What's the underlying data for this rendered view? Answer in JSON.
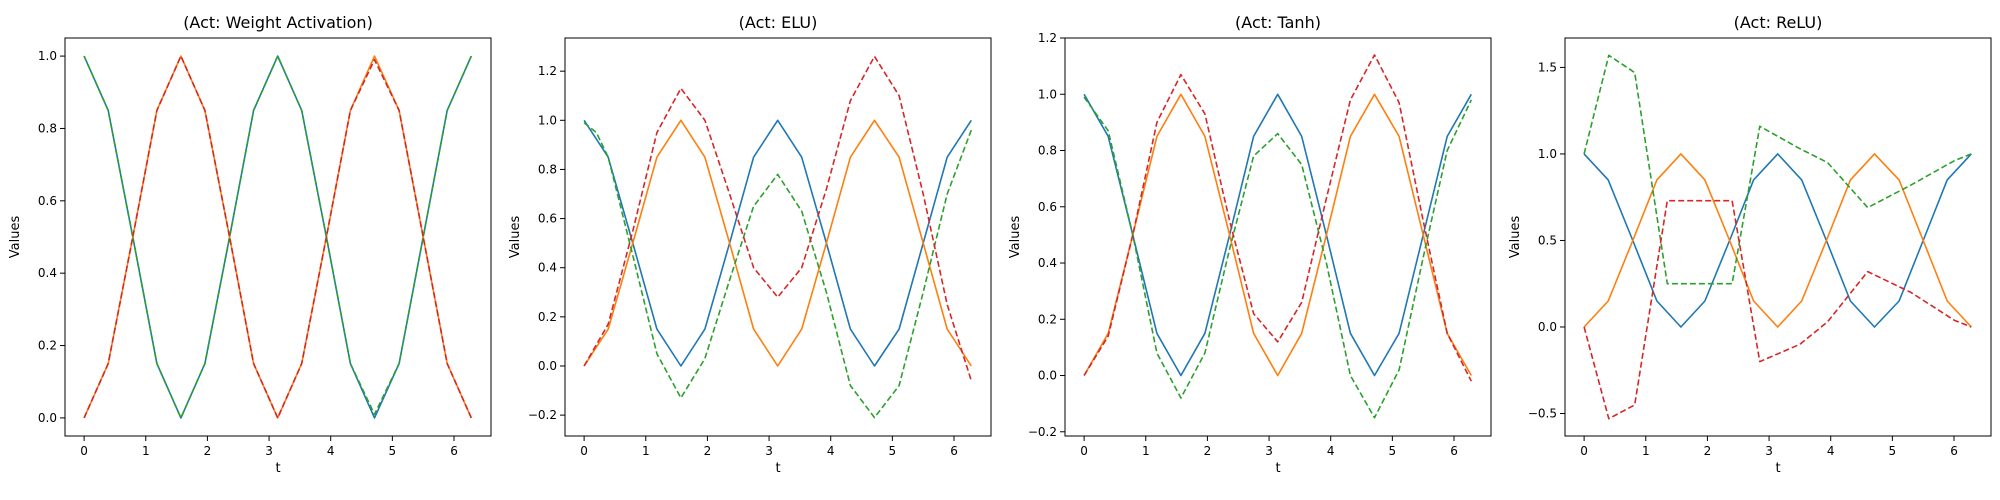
{
  "chart_data": [
    {
      "type": "line",
      "title": "(Act: Weight Activation)",
      "xlabel": "t",
      "ylabel": "Values",
      "xlim": [
        -0.31,
        6.6
      ],
      "ylim": [
        -0.05,
        1.05
      ],
      "xticks": [
        0,
        1,
        2,
        3,
        4,
        5,
        6
      ],
      "yticks": [
        0.0,
        0.2,
        0.4,
        0.6,
        0.8,
        1.0
      ],
      "ytick_labels": [
        "0.0",
        "0.2",
        "0.4",
        "0.6",
        "0.8",
        "1.0"
      ],
      "grid": false,
      "legend": "none",
      "series": [
        {
          "color": "#1f77b4",
          "style": "solid",
          "x": [
            0,
            0.39,
            0.79,
            1.18,
            1.57,
            1.96,
            2.36,
            2.75,
            3.14,
            3.53,
            3.93,
            4.32,
            4.71,
            5.11,
            5.5,
            5.89,
            6.28
          ],
          "y": [
            1.0,
            0.85,
            0.5,
            0.15,
            0.0,
            0.15,
            0.5,
            0.85,
            1.0,
            0.85,
            0.5,
            0.15,
            0.0,
            0.15,
            0.5,
            0.85,
            1.0
          ]
        },
        {
          "color": "#ff7f0e",
          "style": "solid",
          "x": [
            0,
            0.39,
            0.79,
            1.18,
            1.57,
            1.96,
            2.36,
            2.75,
            3.14,
            3.53,
            3.93,
            4.32,
            4.71,
            5.11,
            5.5,
            5.89,
            6.28
          ],
          "y": [
            0.0,
            0.15,
            0.5,
            0.85,
            1.0,
            0.85,
            0.5,
            0.15,
            0.0,
            0.15,
            0.5,
            0.85,
            1.0,
            0.85,
            0.5,
            0.15,
            0.0
          ]
        },
        {
          "color": "#2ca02c",
          "style": "dashed",
          "x": [
            0,
            0.39,
            0.79,
            1.18,
            1.57,
            1.96,
            2.36,
            2.75,
            3.14,
            3.53,
            3.93,
            4.32,
            4.71,
            5.11,
            5.5,
            5.89,
            6.28
          ],
          "y": [
            1.0,
            0.85,
            0.5,
            0.15,
            0.0,
            0.15,
            0.5,
            0.85,
            1.0,
            0.85,
            0.5,
            0.15,
            0.01,
            0.15,
            0.5,
            0.85,
            1.0
          ]
        },
        {
          "color": "#d62728",
          "style": "dashed",
          "x": [
            0,
            0.39,
            0.79,
            1.18,
            1.57,
            1.96,
            2.36,
            2.75,
            3.14,
            3.53,
            3.93,
            4.32,
            4.71,
            5.11,
            5.5,
            5.89,
            6.28
          ],
          "y": [
            0.0,
            0.15,
            0.5,
            0.85,
            1.0,
            0.85,
            0.5,
            0.15,
            0.0,
            0.15,
            0.5,
            0.85,
            0.99,
            0.85,
            0.5,
            0.15,
            0.0
          ]
        }
      ]
    },
    {
      "type": "line",
      "title": "(Act: ELU)",
      "xlabel": "t",
      "ylabel": "Values",
      "xlim": [
        -0.31,
        6.6
      ],
      "ylim": [
        -0.285,
        1.335
      ],
      "xticks": [
        0,
        1,
        2,
        3,
        4,
        5,
        6
      ],
      "yticks": [
        -0.2,
        0.0,
        0.2,
        0.4,
        0.6,
        0.8,
        1.0,
        1.2
      ],
      "ytick_labels": [
        "−0.2",
        "0.0",
        "0.2",
        "0.4",
        "0.6",
        "0.8",
        "1.0",
        "1.2"
      ],
      "grid": false,
      "legend": "none",
      "series": [
        {
          "color": "#1f77b4",
          "style": "solid",
          "x": [
            0,
            0.39,
            0.79,
            1.18,
            1.57,
            1.96,
            2.36,
            2.75,
            3.14,
            3.53,
            3.93,
            4.32,
            4.71,
            5.11,
            5.5,
            5.89,
            6.28
          ],
          "y": [
            1.0,
            0.85,
            0.5,
            0.15,
            0.0,
            0.15,
            0.5,
            0.85,
            1.0,
            0.85,
            0.5,
            0.15,
            0.0,
            0.15,
            0.5,
            0.85,
            1.0
          ]
        },
        {
          "color": "#ff7f0e",
          "style": "solid",
          "x": [
            0,
            0.39,
            0.79,
            1.18,
            1.57,
            1.96,
            2.36,
            2.75,
            3.14,
            3.53,
            3.93,
            4.32,
            4.71,
            5.11,
            5.5,
            5.89,
            6.28
          ],
          "y": [
            0.0,
            0.15,
            0.5,
            0.85,
            1.0,
            0.85,
            0.5,
            0.15,
            0.0,
            0.15,
            0.5,
            0.85,
            1.0,
            0.85,
            0.5,
            0.15,
            0.0
          ]
        },
        {
          "color": "#2ca02c",
          "style": "dashed",
          "x": [
            0,
            0.2,
            0.39,
            0.79,
            1.18,
            1.57,
            1.96,
            2.36,
            2.75,
            3.14,
            3.53,
            3.93,
            4.32,
            4.71,
            5.11,
            5.5,
            5.89,
            6.28
          ],
          "y": [
            0.99,
            0.95,
            0.85,
            0.45,
            0.05,
            -0.13,
            0.03,
            0.35,
            0.65,
            0.78,
            0.63,
            0.3,
            -0.08,
            -0.21,
            -0.08,
            0.3,
            0.7,
            0.96
          ]
        },
        {
          "color": "#d62728",
          "style": "dashed",
          "x": [
            0,
            0.39,
            0.79,
            1.18,
            1.57,
            1.96,
            2.36,
            2.75,
            3.14,
            3.53,
            3.93,
            4.32,
            4.71,
            5.11,
            5.5,
            5.89,
            6.28
          ],
          "y": [
            0.0,
            0.17,
            0.55,
            0.95,
            1.13,
            1.0,
            0.7,
            0.4,
            0.28,
            0.4,
            0.72,
            1.08,
            1.26,
            1.1,
            0.7,
            0.25,
            -0.06
          ]
        }
      ]
    },
    {
      "type": "line",
      "title": "(Act: Tanh)",
      "xlabel": "t",
      "ylabel": "Values",
      "xlim": [
        -0.31,
        6.6
      ],
      "ylim": [
        -0.215,
        1.2
      ],
      "xticks": [
        0,
        1,
        2,
        3,
        4,
        5,
        6
      ],
      "yticks": [
        -0.2,
        0.0,
        0.2,
        0.4,
        0.6,
        0.8,
        1.0,
        1.2
      ],
      "ytick_labels": [
        "−0.2",
        "0.0",
        "0.2",
        "0.4",
        "0.6",
        "0.8",
        "1.0",
        "1.2"
      ],
      "grid": false,
      "legend": "none",
      "series": [
        {
          "color": "#1f77b4",
          "style": "solid",
          "x": [
            0,
            0.39,
            0.79,
            1.18,
            1.57,
            1.96,
            2.36,
            2.75,
            3.14,
            3.53,
            3.93,
            4.32,
            4.71,
            5.11,
            5.5,
            5.89,
            6.28
          ],
          "y": [
            1.0,
            0.85,
            0.5,
            0.15,
            0.0,
            0.15,
            0.5,
            0.85,
            1.0,
            0.85,
            0.5,
            0.15,
            0.0,
            0.15,
            0.5,
            0.85,
            1.0
          ]
        },
        {
          "color": "#ff7f0e",
          "style": "solid",
          "x": [
            0,
            0.39,
            0.79,
            1.18,
            1.57,
            1.96,
            2.36,
            2.75,
            3.14,
            3.53,
            3.93,
            4.32,
            4.71,
            5.11,
            5.5,
            5.89,
            6.28
          ],
          "y": [
            0.0,
            0.15,
            0.5,
            0.85,
            1.0,
            0.85,
            0.5,
            0.15,
            0.0,
            0.15,
            0.5,
            0.85,
            1.0,
            0.85,
            0.5,
            0.15,
            0.0
          ]
        },
        {
          "color": "#2ca02c",
          "style": "dashed",
          "x": [
            0,
            0.39,
            0.79,
            1.18,
            1.57,
            1.96,
            2.36,
            2.75,
            3.14,
            3.53,
            3.93,
            4.32,
            4.71,
            5.11,
            5.5,
            5.89,
            6.28
          ],
          "y": [
            0.99,
            0.87,
            0.5,
            0.08,
            -0.08,
            0.08,
            0.45,
            0.78,
            0.86,
            0.75,
            0.4,
            0.0,
            -0.15,
            0.02,
            0.42,
            0.8,
            0.98
          ]
        },
        {
          "color": "#d62728",
          "style": "dashed",
          "x": [
            0,
            0.39,
            0.79,
            1.18,
            1.57,
            1.96,
            2.36,
            2.75,
            3.14,
            3.53,
            3.93,
            4.32,
            4.71,
            5.11,
            5.5,
            5.89,
            6.28
          ],
          "y": [
            0.0,
            0.14,
            0.5,
            0.9,
            1.07,
            0.93,
            0.55,
            0.22,
            0.12,
            0.26,
            0.63,
            0.98,
            1.14,
            0.97,
            0.55,
            0.15,
            -0.02
          ]
        }
      ]
    },
    {
      "type": "line",
      "title": "(Act: ReLU)",
      "xlabel": "t",
      "ylabel": "Values",
      "xlim": [
        -0.31,
        6.6
      ],
      "ylim": [
        -0.63,
        1.67
      ],
      "xticks": [
        0,
        1,
        2,
        3,
        4,
        5,
        6
      ],
      "yticks": [
        -0.5,
        0.0,
        0.5,
        1.0,
        1.5
      ],
      "ytick_labels": [
        "−0.5",
        "0.0",
        "0.5",
        "1.0",
        "1.5"
      ],
      "grid": false,
      "legend": "none",
      "series": [
        {
          "color": "#1f77b4",
          "style": "solid",
          "x": [
            0,
            0.39,
            0.79,
            1.18,
            1.57,
            1.96,
            2.36,
            2.75,
            3.14,
            3.53,
            3.93,
            4.32,
            4.71,
            5.11,
            5.5,
            5.89,
            6.28
          ],
          "y": [
            1.0,
            0.85,
            0.5,
            0.15,
            0.0,
            0.15,
            0.5,
            0.85,
            1.0,
            0.85,
            0.5,
            0.15,
            0.0,
            0.15,
            0.5,
            0.85,
            1.0
          ]
        },
        {
          "color": "#ff7f0e",
          "style": "solid",
          "x": [
            0,
            0.39,
            0.79,
            1.18,
            1.57,
            1.96,
            2.36,
            2.75,
            3.14,
            3.53,
            3.93,
            4.32,
            4.71,
            5.11,
            5.5,
            5.89,
            6.28
          ],
          "y": [
            0.0,
            0.15,
            0.5,
            0.85,
            1.0,
            0.85,
            0.5,
            0.15,
            0.0,
            0.15,
            0.5,
            0.85,
            1.0,
            0.85,
            0.5,
            0.15,
            0.0
          ]
        },
        {
          "color": "#2ca02c",
          "style": "dashed",
          "x": [
            0,
            0.4,
            0.82,
            1.35,
            1.82,
            2.4,
            2.85,
            3.5,
            3.95,
            4.6,
            5.3,
            6.0,
            6.28
          ],
          "y": [
            1.0,
            1.57,
            1.47,
            0.25,
            0.25,
            0.25,
            1.16,
            1.03,
            0.95,
            0.69,
            0.82,
            0.96,
            1.0
          ]
        },
        {
          "color": "#d62728",
          "style": "dashed",
          "x": [
            0,
            0.4,
            0.82,
            1.35,
            1.82,
            2.4,
            2.85,
            3.5,
            3.95,
            4.6,
            5.3,
            6.0,
            6.28
          ],
          "y": [
            0.0,
            -0.53,
            -0.45,
            0.73,
            0.73,
            0.73,
            -0.2,
            -0.1,
            0.03,
            0.32,
            0.2,
            0.04,
            0.0
          ]
        }
      ]
    }
  ]
}
